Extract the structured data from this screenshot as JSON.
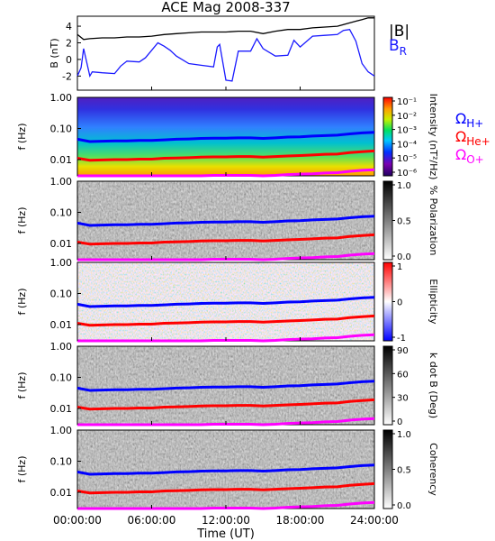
{
  "figure": {
    "title": "ACE Mag 2008-337",
    "xlabel": "Time (UT)",
    "xticks": [
      "00:00:00",
      "06:00:00",
      "12:00:00",
      "18:00:00",
      "24:00:00"
    ]
  },
  "colors": {
    "B_total": "#000000",
    "B_R": "#1a1aff",
    "OmegaH": "#0000ff",
    "OmegaHe": "#ff0000",
    "OmegaO": "#ff00ff",
    "bg": "#ffffff"
  },
  "chart_data": [
    {
      "type": "line",
      "ylabel": "B (nT)",
      "ylim": [
        -3.7,
        5.2
      ],
      "yticks": [
        -2,
        0,
        2,
        4
      ],
      "ytick_labels": [
        "-2",
        "0",
        "2",
        "4"
      ],
      "xlim_hours": [
        0,
        24
      ],
      "legend": [
        "|B|",
        "B_R"
      ],
      "series": [
        {
          "name": "|B|",
          "x": [
            0,
            0.5,
            1,
            2,
            3,
            4,
            5,
            6,
            7,
            8,
            9,
            10,
            11,
            12,
            13,
            14,
            15,
            16,
            17,
            18,
            19,
            20,
            21,
            22,
            22.5,
            23,
            23.5,
            24
          ],
          "y": [
            3.0,
            2.4,
            2.5,
            2.6,
            2.6,
            2.7,
            2.7,
            2.8,
            3.0,
            3.1,
            3.2,
            3.3,
            3.3,
            3.3,
            3.4,
            3.4,
            3.1,
            3.4,
            3.6,
            3.6,
            3.8,
            3.9,
            4.0,
            4.4,
            4.6,
            4.8,
            5.0,
            5.0
          ]
        },
        {
          "name": "B_R",
          "x": [
            0,
            0.3,
            0.5,
            1,
            1.2,
            2,
            3,
            3.5,
            4,
            5,
            5.5,
            6,
            6.5,
            7,
            7.5,
            8,
            9,
            10,
            11,
            11.3,
            11.5,
            12,
            12.5,
            13,
            14,
            14.5,
            15,
            16,
            17,
            17.5,
            18,
            19,
            20,
            21,
            21.5,
            22,
            22.5,
            23,
            23.5,
            24
          ],
          "y": [
            -2.0,
            -1.0,
            1.3,
            -2.0,
            -1.5,
            -1.6,
            -1.7,
            -0.8,
            -0.2,
            -0.3,
            0.2,
            1.1,
            2.0,
            1.6,
            1.1,
            0.4,
            -0.5,
            -0.7,
            -0.9,
            1.5,
            1.8,
            -2.5,
            -2.6,
            1.0,
            1.0,
            2.5,
            1.3,
            0.4,
            0.5,
            2.3,
            1.5,
            2.8,
            2.9,
            3.0,
            3.5,
            3.6,
            2.2,
            -0.5,
            -1.5,
            -2.0
          ]
        }
      ]
    },
    {
      "type": "heatmap",
      "quantity": "Intensity",
      "ylabel": "f (Hz)",
      "yscale": "log",
      "ylim": [
        0.003,
        1.0
      ],
      "yticks": [
        0.01,
        0.1,
        1.0
      ],
      "ytick_labels": [
        "0.01",
        "0.10",
        "1.00"
      ],
      "colorbar": {
        "label": "Intensity (nT²/Hz)",
        "scale": "log",
        "range": [
          1e-06,
          0.1
        ],
        "tick_labels": [
          "10⁻⁶",
          "10⁻⁵",
          "10⁻⁴",
          "10⁻³",
          "10⁻²",
          "10⁻¹"
        ],
        "colormap": "rainbow"
      },
      "legend": [
        "Ω_H+",
        "Ω_He+",
        "Ω_O+"
      ]
    },
    {
      "type": "heatmap",
      "quantity": "% Polarization",
      "ylabel": "f (Hz)",
      "yscale": "log",
      "ylim": [
        0.003,
        1.0
      ],
      "yticks": [
        0.01,
        0.1,
        1.0
      ],
      "ytick_labels": [
        "0.01",
        "0.10",
        "1.00"
      ],
      "colorbar": {
        "label": "% Polarization",
        "scale": "linear",
        "range": [
          0,
          1.0
        ],
        "tick_labels": [
          "0.0",
          "0.5",
          "1.0"
        ],
        "colormap": "gray"
      }
    },
    {
      "type": "heatmap",
      "quantity": "Ellipticity",
      "ylabel": "f (Hz)",
      "yscale": "log",
      "ylim": [
        0.003,
        1.0
      ],
      "yticks": [
        0.01,
        0.1,
        1.0
      ],
      "ytick_labels": [
        "0.01",
        "0.10",
        "1.00"
      ],
      "colorbar": {
        "label": "Ellipticity",
        "scale": "linear",
        "range": [
          -1,
          1
        ],
        "tick_labels": [
          "-1",
          "0",
          "1"
        ],
        "colormap": "blue-white-red"
      }
    },
    {
      "type": "heatmap",
      "quantity": "k dot B",
      "ylabel": "f (Hz)",
      "yscale": "log",
      "ylim": [
        0.003,
        1.0
      ],
      "yticks": [
        0.01,
        0.1,
        1.0
      ],
      "ytick_labels": [
        "0.01",
        "0.10",
        "1.00"
      ],
      "colorbar": {
        "label": "k dot B (Deg)",
        "scale": "linear",
        "range": [
          0,
          90
        ],
        "tick_labels": [
          "0",
          "30",
          "60",
          "90"
        ],
        "colormap": "gray"
      }
    },
    {
      "type": "heatmap",
      "quantity": "Coherency",
      "ylabel": "f (Hz)",
      "yscale": "log",
      "ylim": [
        0.003,
        1.0
      ],
      "yticks": [
        0.01,
        0.1,
        1.0
      ],
      "ytick_labels": [
        "0.01",
        "0.10",
        "1.00"
      ],
      "colorbar": {
        "label": "Coherency",
        "scale": "linear",
        "range": [
          0,
          1.0
        ],
        "tick_labels": [
          "0.0",
          "0.5",
          "1.0"
        ],
        "colormap": "gray"
      }
    }
  ],
  "gyrofrequency_lines": {
    "x_hours": [
      0,
      1,
      2,
      3,
      4,
      5,
      6,
      7,
      8,
      9,
      10,
      11,
      12,
      13,
      14,
      15,
      16,
      17,
      18,
      19,
      20,
      21,
      22,
      23,
      24
    ],
    "H+_hz": [
      0.045,
      0.038,
      0.039,
      0.04,
      0.04,
      0.041,
      0.041,
      0.043,
      0.045,
      0.046,
      0.048,
      0.049,
      0.049,
      0.05,
      0.05,
      0.048,
      0.05,
      0.053,
      0.054,
      0.057,
      0.059,
      0.061,
      0.067,
      0.072,
      0.075
    ],
    "He+_hz": [
      0.011,
      0.0095,
      0.0097,
      0.01,
      0.01,
      0.0103,
      0.0103,
      0.011,
      0.0112,
      0.0115,
      0.012,
      0.0122,
      0.0122,
      0.0125,
      0.0125,
      0.012,
      0.0125,
      0.013,
      0.0135,
      0.014,
      0.0148,
      0.015,
      0.0168,
      0.018,
      0.019
    ],
    "O+_hz": [
      0.0028,
      0.0024,
      0.0024,
      0.0025,
      0.0025,
      0.0026,
      0.0026,
      0.0027,
      0.0028,
      0.0029,
      0.003,
      0.0031,
      0.0031,
      0.0031,
      0.0031,
      0.003,
      0.0031,
      0.0033,
      0.0034,
      0.0035,
      0.0037,
      0.0038,
      0.0042,
      0.0045,
      0.0047
    ]
  },
  "labels": {
    "B_total": "|B|",
    "B_R_main": "B",
    "B_R_sub": "R",
    "omega": "Ω",
    "omegaH_sub": "H+",
    "omegaHe_sub": "He+",
    "omegaO_sub": "O+"
  }
}
